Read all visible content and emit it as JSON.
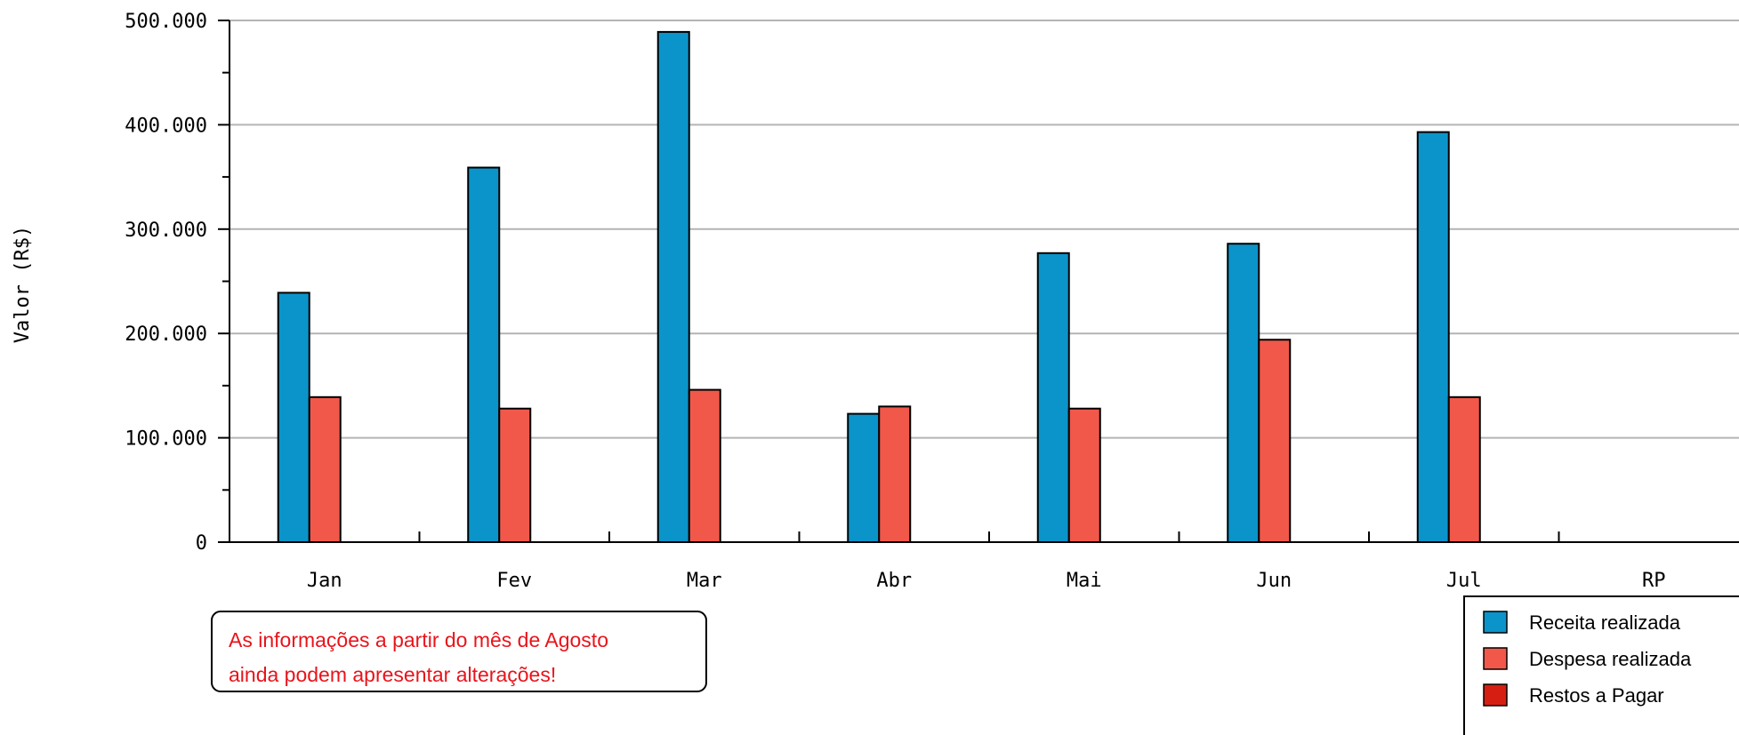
{
  "chart_data": {
    "type": "bar",
    "title": "",
    "xlabel": "",
    "ylabel": "Valor (R$)",
    "categories": [
      "Jan",
      "Fev",
      "Mar",
      "Abr",
      "Mai",
      "Jun",
      "Jul",
      "RP"
    ],
    "series": [
      {
        "name": "Receita realizada",
        "color": "#0b94c9",
        "values": [
          239000,
          359000,
          489000,
          123000,
          277000,
          286000,
          393000,
          null
        ]
      },
      {
        "name": "Despesa realizada",
        "color": "#f1584a",
        "values": [
          139000,
          128000,
          146000,
          130000,
          128000,
          194000,
          139000,
          null
        ]
      },
      {
        "name": "Restos a Pagar",
        "color": "#d61f12",
        "values": [
          null,
          null,
          null,
          null,
          null,
          null,
          null,
          null
        ]
      }
    ],
    "ylim": [
      0,
      500000
    ],
    "yticks": [
      0,
      100000,
      200000,
      300000,
      400000,
      500000
    ],
    "ytick_labels": [
      "0",
      "100.000",
      "200.000",
      "300.000",
      "400.000",
      "500.000"
    ],
    "grid": true,
    "legend_position": "bottom-right"
  },
  "note": {
    "lines": [
      "As informações a partir do mês de Agosto",
      "ainda podem apresentar alterações!"
    ]
  }
}
